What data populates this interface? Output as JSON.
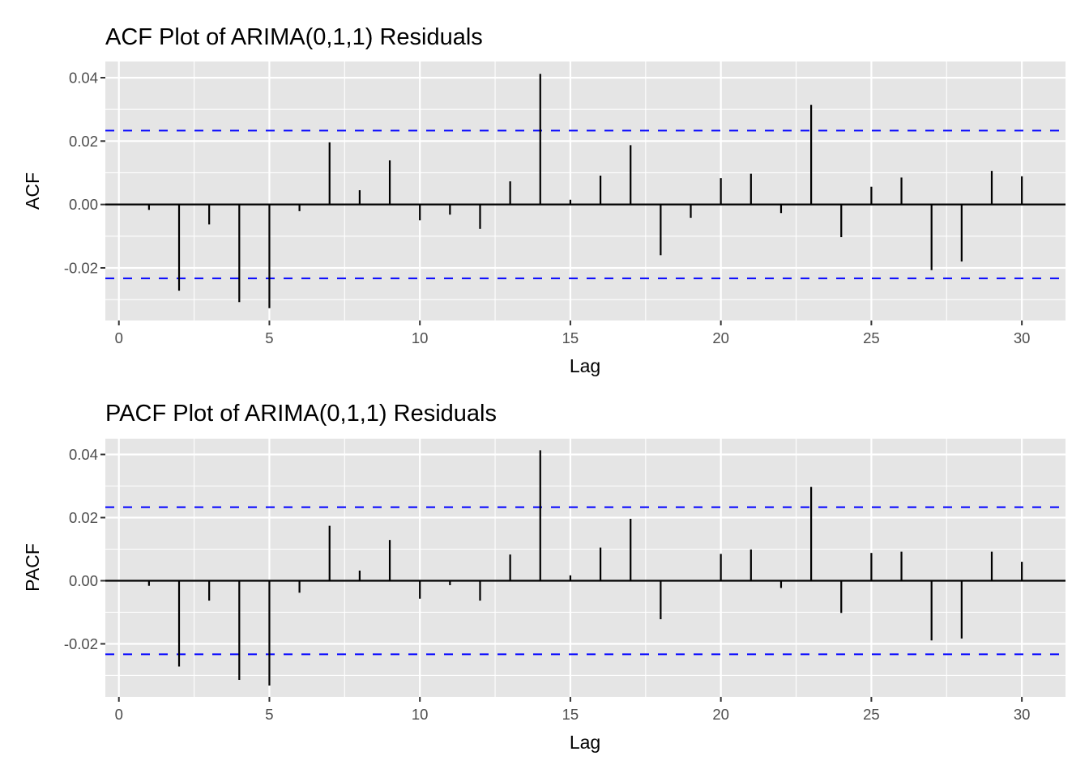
{
  "chart_data": [
    {
      "type": "bar",
      "subtype": "acf-stem",
      "title": "ACF Plot of ARIMA(0,1,1) Residuals",
      "xlabel": "Lag",
      "ylabel": "ACF",
      "x": [
        1,
        2,
        3,
        4,
        5,
        6,
        7,
        8,
        9,
        10,
        11,
        12,
        13,
        14,
        15,
        16,
        17,
        18,
        19,
        20,
        21,
        22,
        23,
        24,
        25,
        26,
        27,
        28,
        29,
        30
      ],
      "values": [
        -0.0017,
        -0.0272,
        -0.0063,
        -0.0308,
        -0.0327,
        -0.0021,
        0.0196,
        0.0045,
        0.0139,
        -0.005,
        -0.0032,
        -0.0077,
        0.0073,
        0.0412,
        0.0015,
        0.0091,
        0.0187,
        -0.016,
        -0.0042,
        0.0083,
        0.0097,
        -0.0027,
        0.0314,
        -0.0103,
        0.0056,
        0.0085,
        -0.0207,
        -0.018,
        0.0106,
        0.0089
      ],
      "confidence_bound": 0.0233,
      "xlim": [
        -0.45,
        31.45
      ],
      "ylim": [
        -0.0366,
        0.0451
      ],
      "xticks": [
        0,
        5,
        10,
        15,
        20,
        25,
        30
      ],
      "xtick_labels": [
        "0",
        "5",
        "10",
        "15",
        "20",
        "25",
        "30"
      ],
      "yticks": [
        -0.02,
        0.0,
        0.02,
        0.04
      ],
      "ytick_labels": [
        "-0.02",
        "0.00",
        "0.02",
        "0.04"
      ],
      "grid": true,
      "colors": {
        "panel": "#e5e5e5",
        "grid": "#ffffff",
        "bars": "#000000",
        "bound": "#0000ff"
      }
    },
    {
      "type": "bar",
      "subtype": "pacf-stem",
      "title": "PACF Plot of ARIMA(0,1,1) Residuals",
      "xlabel": "Lag",
      "ylabel": "PACF",
      "x": [
        1,
        2,
        3,
        4,
        5,
        6,
        7,
        8,
        9,
        10,
        11,
        12,
        13,
        14,
        15,
        16,
        17,
        18,
        19,
        20,
        21,
        22,
        23,
        24,
        25,
        26,
        27,
        28,
        29,
        30
      ],
      "values": [
        -0.0016,
        -0.0272,
        -0.0063,
        -0.0314,
        -0.0332,
        -0.0038,
        0.0174,
        0.0032,
        0.0129,
        -0.0057,
        -0.0014,
        -0.0063,
        0.0083,
        0.0413,
        0.0017,
        0.0105,
        0.0196,
        -0.0122,
        0.0001,
        0.0085,
        0.0099,
        -0.0023,
        0.0297,
        -0.0102,
        0.0088,
        0.0092,
        -0.0189,
        -0.0183,
        0.0092,
        0.006
      ],
      "confidence_bound": 0.0233,
      "xlim": [
        -0.45,
        31.45
      ],
      "ylim": [
        -0.0368,
        0.045
      ],
      "xticks": [
        0,
        5,
        10,
        15,
        20,
        25,
        30
      ],
      "xtick_labels": [
        "0",
        "5",
        "10",
        "15",
        "20",
        "25",
        "30"
      ],
      "yticks": [
        -0.02,
        0.0,
        0.02,
        0.04
      ],
      "ytick_labels": [
        "-0.02",
        "0.00",
        "0.02",
        "0.04"
      ],
      "grid": true,
      "colors": {
        "panel": "#e5e5e5",
        "grid": "#ffffff",
        "bars": "#000000",
        "bound": "#0000ff"
      }
    }
  ]
}
